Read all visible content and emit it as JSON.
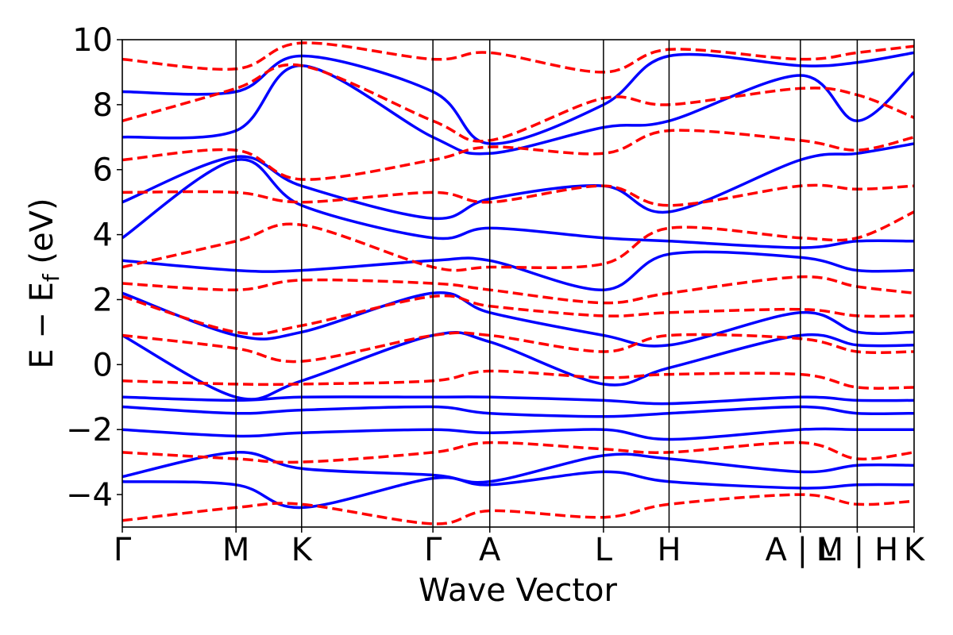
{
  "chart_data": {
    "type": "line",
    "xlabel": "Wave Vector",
    "ylabel_main": "E − E",
    "ylabel_sub": "f",
    "ylabel_unit": " (eV)",
    "ylim": [
      -5,
      10
    ],
    "yticks": [
      -4,
      -2,
      0,
      2,
      4,
      6,
      8,
      10
    ],
    "ytick_labels": [
      "−4",
      "−2",
      "0",
      "2",
      "4",
      "6",
      "8",
      "10"
    ],
    "kpath_labels": [
      "Γ",
      "M",
      "K",
      "Γ",
      "A",
      "L",
      "H",
      "A | L",
      "M | H",
      "K"
    ],
    "kpath_positions": [
      0,
      1,
      1.577,
      2.732,
      3.232,
      4.232,
      4.809,
      5.964,
      6.464,
      6.964
    ],
    "xlim": [
      0,
      6.964
    ],
    "series": [
      {
        "style": "solid",
        "color": "#0000ff",
        "bands": [
          [
            [
              0,
              -3.6
            ],
            [
              1,
              -3.7
            ],
            [
              1.577,
              -4.4
            ],
            [
              2.732,
              -3.5
            ],
            [
              3.232,
              -3.7
            ],
            [
              4.232,
              -3.3
            ],
            [
              4.809,
              -3.6
            ],
            [
              5.964,
              -3.8
            ],
            [
              6.464,
              -3.7
            ],
            [
              6.964,
              -3.7
            ]
          ],
          [
            [
              0,
              -3.45
            ],
            [
              1,
              -2.7
            ],
            [
              1.577,
              -3.2
            ],
            [
              2.732,
              -3.4
            ],
            [
              3.232,
              -3.6
            ],
            [
              4.232,
              -2.8
            ],
            [
              4.809,
              -2.9
            ],
            [
              5.964,
              -3.3
            ],
            [
              6.464,
              -3.1
            ],
            [
              6.964,
              -3.1
            ]
          ],
          [
            [
              0,
              -2.0
            ],
            [
              1,
              -2.2
            ],
            [
              1.577,
              -2.1
            ],
            [
              2.732,
              -2.0
            ],
            [
              3.232,
              -2.1
            ],
            [
              4.232,
              -2.0
            ],
            [
              4.809,
              -2.3
            ],
            [
              5.964,
              -2.0
            ],
            [
              6.464,
              -2.0
            ],
            [
              6.964,
              -2.0
            ]
          ],
          [
            [
              0,
              -1.3
            ],
            [
              1,
              -1.5
            ],
            [
              1.577,
              -1.4
            ],
            [
              2.732,
              -1.3
            ],
            [
              3.232,
              -1.5
            ],
            [
              4.232,
              -1.6
            ],
            [
              4.809,
              -1.5
            ],
            [
              5.964,
              -1.3
            ],
            [
              6.464,
              -1.5
            ],
            [
              6.964,
              -1.5
            ]
          ],
          [
            [
              0,
              -1.0
            ],
            [
              1,
              -1.1
            ],
            [
              1.577,
              -1.0
            ],
            [
              2.732,
              -1.0
            ],
            [
              3.232,
              -1.0
            ],
            [
              4.232,
              -1.1
            ],
            [
              4.809,
              -1.2
            ],
            [
              5.964,
              -1.0
            ],
            [
              6.464,
              -1.1
            ],
            [
              6.964,
              -1.1
            ]
          ],
          [
            [
              0,
              0.9
            ],
            [
              1,
              -1.0
            ],
            [
              1.577,
              -0.5
            ],
            [
              2.732,
              0.9
            ],
            [
              3.232,
              0.7
            ],
            [
              4.232,
              -0.6
            ],
            [
              4.809,
              -0.1
            ],
            [
              5.964,
              0.9
            ],
            [
              6.464,
              0.6
            ],
            [
              6.964,
              0.6
            ]
          ],
          [
            [
              0,
              2.2
            ],
            [
              1,
              0.9
            ],
            [
              1.577,
              1.0
            ],
            [
              2.732,
              2.2
            ],
            [
              3.232,
              1.6
            ],
            [
              4.232,
              0.9
            ],
            [
              4.809,
              0.6
            ],
            [
              5.964,
              1.6
            ],
            [
              6.464,
              1.0
            ],
            [
              6.964,
              1.0
            ]
          ],
          [
            [
              0,
              3.2
            ],
            [
              1,
              2.9
            ],
            [
              1.577,
              2.9
            ],
            [
              2.732,
              3.2
            ],
            [
              3.232,
              3.2
            ],
            [
              4.232,
              2.3
            ],
            [
              4.809,
              3.4
            ],
            [
              5.964,
              3.3
            ],
            [
              6.464,
              2.9
            ],
            [
              6.964,
              2.9
            ]
          ],
          [
            [
              0,
              3.9
            ],
            [
              1,
              6.3
            ],
            [
              1.577,
              4.9
            ],
            [
              2.732,
              3.9
            ],
            [
              3.232,
              4.2
            ],
            [
              4.232,
              3.9
            ],
            [
              4.809,
              3.8
            ],
            [
              5.964,
              3.6
            ],
            [
              6.464,
              3.8
            ],
            [
              6.964,
              3.8
            ]
          ],
          [
            [
              0,
              5.0
            ],
            [
              1,
              6.4
            ],
            [
              1.577,
              5.5
            ],
            [
              2.732,
              4.5
            ],
            [
              3.232,
              5.1
            ],
            [
              4.232,
              5.5
            ],
            [
              4.809,
              4.7
            ],
            [
              5.964,
              6.3
            ],
            [
              6.464,
              6.5
            ],
            [
              6.964,
              6.8
            ]
          ],
          [
            [
              0,
              7.0
            ],
            [
              1,
              7.2
            ],
            [
              1.577,
              9.2
            ],
            [
              2.732,
              7.0
            ],
            [
              3.232,
              6.5
            ],
            [
              4.232,
              7.3
            ],
            [
              4.809,
              7.5
            ],
            [
              5.964,
              8.9
            ],
            [
              6.464,
              7.5
            ],
            [
              6.964,
              9.0
            ]
          ],
          [
            [
              0,
              8.4
            ],
            [
              1,
              8.4
            ],
            [
              1.577,
              9.5
            ],
            [
              2.732,
              8.4
            ],
            [
              3.232,
              6.8
            ],
            [
              4.232,
              8.0
            ],
            [
              4.809,
              9.5
            ],
            [
              5.964,
              9.2
            ],
            [
              6.464,
              9.3
            ],
            [
              6.964,
              9.6
            ]
          ]
        ]
      },
      {
        "style": "dashed",
        "color": "#ff0000",
        "bands": [
          [
            [
              0,
              -4.8
            ],
            [
              1,
              -4.4
            ],
            [
              1.577,
              -4.3
            ],
            [
              2.732,
              -4.9
            ],
            [
              3.232,
              -4.5
            ],
            [
              4.232,
              -4.7
            ],
            [
              4.809,
              -4.3
            ],
            [
              5.964,
              -4.0
            ],
            [
              6.464,
              -4.3
            ],
            [
              6.964,
              -4.2
            ]
          ],
          [
            [
              0,
              -2.7
            ],
            [
              1,
              -2.9
            ],
            [
              1.577,
              -3.0
            ],
            [
              2.732,
              -2.7
            ],
            [
              3.232,
              -2.4
            ],
            [
              4.232,
              -2.6
            ],
            [
              4.809,
              -2.7
            ],
            [
              5.964,
              -2.4
            ],
            [
              6.464,
              -2.9
            ],
            [
              6.964,
              -2.7
            ]
          ],
          [
            [
              0,
              -0.5
            ],
            [
              1,
              -0.6
            ],
            [
              1.577,
              -0.6
            ],
            [
              2.732,
              -0.5
            ],
            [
              3.232,
              -0.2
            ],
            [
              4.232,
              -0.4
            ],
            [
              4.809,
              -0.3
            ],
            [
              5.964,
              -0.3
            ],
            [
              6.464,
              -0.7
            ],
            [
              6.964,
              -0.7
            ]
          ],
          [
            [
              0,
              0.9
            ],
            [
              1,
              0.5
            ],
            [
              1.577,
              0.1
            ],
            [
              2.732,
              0.9
            ],
            [
              3.232,
              0.9
            ],
            [
              4.232,
              0.4
            ],
            [
              4.809,
              0.9
            ],
            [
              5.964,
              0.8
            ],
            [
              6.464,
              0.4
            ],
            [
              6.964,
              0.4
            ]
          ],
          [
            [
              0,
              2.1
            ],
            [
              1,
              1.0
            ],
            [
              1.577,
              1.2
            ],
            [
              2.732,
              2.1
            ],
            [
              3.232,
              1.8
            ],
            [
              4.232,
              1.5
            ],
            [
              4.809,
              1.6
            ],
            [
              5.964,
              1.7
            ],
            [
              6.464,
              1.5
            ],
            [
              6.964,
              1.5
            ]
          ],
          [
            [
              0,
              2.5
            ],
            [
              1,
              2.3
            ],
            [
              1.577,
              2.6
            ],
            [
              2.732,
              2.5
            ],
            [
              3.232,
              2.3
            ],
            [
              4.232,
              1.9
            ],
            [
              4.809,
              2.2
            ],
            [
              5.964,
              2.7
            ],
            [
              6.464,
              2.4
            ],
            [
              6.964,
              2.2
            ]
          ],
          [
            [
              0,
              3.0
            ],
            [
              1,
              3.8
            ],
            [
              1.577,
              4.3
            ],
            [
              2.732,
              3.0
            ],
            [
              3.232,
              3.0
            ],
            [
              4.232,
              3.1
            ],
            [
              4.809,
              4.2
            ],
            [
              5.964,
              3.9
            ],
            [
              6.464,
              3.9
            ],
            [
              6.964,
              4.7
            ]
          ],
          [
            [
              0,
              5.3
            ],
            [
              1,
              5.3
            ],
            [
              1.577,
              5.0
            ],
            [
              2.732,
              5.3
            ],
            [
              3.232,
              5.0
            ],
            [
              4.232,
              5.5
            ],
            [
              4.809,
              4.9
            ],
            [
              5.964,
              5.5
            ],
            [
              6.464,
              5.4
            ],
            [
              6.964,
              5.5
            ]
          ],
          [
            [
              0,
              6.3
            ],
            [
              1,
              6.6
            ],
            [
              1.577,
              5.7
            ],
            [
              2.732,
              6.3
            ],
            [
              3.232,
              6.7
            ],
            [
              4.232,
              6.5
            ],
            [
              4.809,
              7.2
            ],
            [
              5.964,
              6.9
            ],
            [
              6.464,
              6.6
            ],
            [
              6.964,
              7.0
            ]
          ],
          [
            [
              0,
              7.5
            ],
            [
              1,
              8.5
            ],
            [
              1.577,
              9.2
            ],
            [
              2.732,
              7.5
            ],
            [
              3.232,
              6.9
            ],
            [
              4.232,
              8.2
            ],
            [
              4.809,
              8.0
            ],
            [
              5.964,
              8.5
            ],
            [
              6.464,
              8.3
            ],
            [
              6.964,
              7.6
            ]
          ],
          [
            [
              0,
              9.4
            ],
            [
              1,
              9.1
            ],
            [
              1.577,
              9.9
            ],
            [
              2.732,
              9.4
            ],
            [
              3.232,
              9.6
            ],
            [
              4.232,
              9.0
            ],
            [
              4.809,
              9.7
            ],
            [
              5.964,
              9.4
            ],
            [
              6.464,
              9.6
            ],
            [
              6.964,
              9.8
            ]
          ]
        ]
      }
    ]
  }
}
